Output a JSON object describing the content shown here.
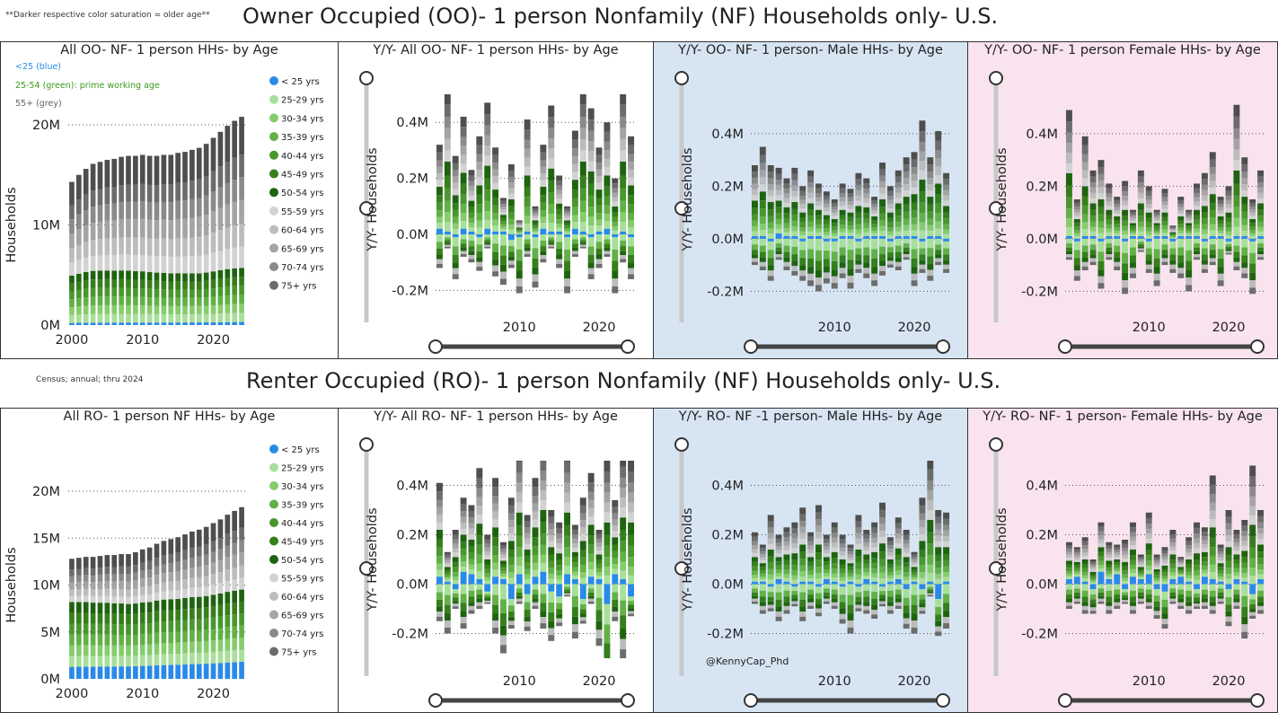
{
  "header": {
    "note_saturation": "**Darker respective color saturation = older age**",
    "title_oo": "Owner Occupied (OO)- 1 person Nonfamily (NF) Households only- U.S.",
    "note_source": "Census; annual; thru 2024",
    "title_ro": "Renter Occupied (RO)- 1 person Nonfamily (NF) Households only- U.S.",
    "credit": "@KennyCap_Phd"
  },
  "age_notes": {
    "blue": "<25 (blue)",
    "green": "25-54 (green): prime working age",
    "grey": "55+ (grey)"
  },
  "colors": {
    "blue": "#2a8ae8",
    "green_shades": [
      "#a8e09a",
      "#86cc6e",
      "#62b148",
      "#4a9730",
      "#357f1c",
      "#1f6310"
    ],
    "grey_shades": [
      "#d2d2d2",
      "#bcbcbc",
      "#a4a4a4",
      "#8a8a8a",
      "#6c6c6c",
      "#4e4e4e"
    ],
    "bg_male": "#d7e5f3",
    "bg_female": "#f8e3ee"
  },
  "legend": [
    "< 25 yrs",
    "25-29 yrs",
    "30-34 yrs",
    "35-39 yrs",
    "40-44 yrs",
    "45-49 yrs",
    "50-54 yrs",
    "55-59 yrs",
    "60-64 yrs",
    "65-69 yrs",
    "70-74 yrs",
    "75+ yrs"
  ],
  "chart_data": [
    {
      "id": "oo-all-level",
      "type": "bar",
      "stacked": true,
      "title": "All OO- NF- 1 person HHs- by Age",
      "ylabel": "Households",
      "ylim": [
        0,
        20000000
      ],
      "yticks": [
        "0M",
        "10M",
        "20M"
      ],
      "xticks": [
        "2000",
        "2010",
        "2020"
      ],
      "x": [
        2000,
        2001,
        2002,
        2003,
        2004,
        2005,
        2006,
        2007,
        2008,
        2009,
        2010,
        2011,
        2012,
        2013,
        2014,
        2015,
        2016,
        2017,
        2018,
        2019,
        2020,
        2021,
        2022,
        2023,
        2024
      ],
      "totals": [
        14.3,
        15.0,
        15.6,
        16.1,
        16.3,
        16.5,
        16.6,
        16.8,
        16.9,
        16.9,
        17.0,
        16.9,
        16.9,
        17.0,
        17.0,
        17.2,
        17.3,
        17.5,
        17.7,
        18.1,
        18.7,
        19.3,
        19.9,
        20.4,
        20.8
      ],
      "under25_share": 0.015,
      "prime_share_first": 0.33,
      "prime_share_last": 0.26,
      "legend": true
    },
    {
      "id": "oo-all-yoy",
      "type": "bar",
      "stacked": true,
      "title": "Y/Y- All OO- NF- 1 person HHs- by Age",
      "ylabel": "Y/Y- Households",
      "ylim": [
        -0.25,
        0.5
      ],
      "yticks": [
        "0.4M",
        "0.2M",
        "0.0M",
        "-0.2M"
      ],
      "xticks": [
        "2010",
        "2020"
      ],
      "totals": [
        0.3,
        0.5,
        0.28,
        0.4,
        0.22,
        0.35,
        0.45,
        0.3,
        0.12,
        0.25,
        0.05,
        0.4,
        0.1,
        0.3,
        0.45,
        0.2,
        0.1,
        0.35,
        0.5,
        0.45,
        0.3,
        0.38,
        0.2,
        0.5,
        0.35
      ],
      "neg": [
        -0.12,
        -0.05,
        -0.15,
        -0.08,
        -0.1,
        -0.12,
        -0.05,
        -0.15,
        -0.18,
        -0.1,
        -0.2,
        -0.08,
        -0.18,
        -0.1,
        -0.05,
        -0.12,
        -0.2,
        -0.08,
        -0.05,
        -0.15,
        -0.12,
        -0.08,
        -0.2,
        -0.1,
        -0.15
      ],
      "blue": [
        0.02,
        0.01,
        -0.01,
        0.02,
        0.01,
        -0.01,
        0.02,
        0.01,
        0.01,
        -0.02,
        -0.01,
        0.01,
        -0.01,
        0.02,
        0.01,
        0.01,
        -0.01,
        0.02,
        0.01,
        -0.01,
        0.01,
        0.02,
        -0.01,
        0.01,
        -0.01
      ]
    },
    {
      "id": "oo-male-yoy",
      "type": "bar",
      "stacked": true,
      "title": "Y/Y- OO- NF- 1 person- Male HHs- by Age",
      "ylabel": "Y/Y- Households",
      "ylim": [
        -0.25,
        0.55
      ],
      "yticks": [
        "0.4M",
        "0.2M",
        "0.0M",
        "-0.2M"
      ],
      "xticks": [
        "2010",
        "2020"
      ],
      "totals": [
        0.27,
        0.34,
        0.28,
        0.25,
        0.22,
        0.26,
        0.2,
        0.25,
        0.2,
        0.18,
        0.15,
        0.2,
        0.18,
        0.25,
        0.22,
        0.15,
        0.28,
        0.2,
        0.25,
        0.3,
        0.32,
        0.45,
        0.3,
        0.4,
        0.25
      ],
      "neg": [
        -0.1,
        -0.12,
        -0.15,
        -0.08,
        -0.12,
        -0.14,
        -0.15,
        -0.18,
        -0.2,
        -0.16,
        -0.18,
        -0.15,
        -0.19,
        -0.12,
        -0.15,
        -0.18,
        -0.14,
        -0.1,
        -0.12,
        -0.08,
        -0.18,
        -0.12,
        -0.16,
        -0.1,
        -0.12
      ],
      "blue": [
        0.01,
        0.01,
        -0.01,
        0.02,
        0.01,
        0.01,
        -0.01,
        0.01,
        0.01,
        -0.01,
        -0.01,
        0.01,
        0.01,
        -0.01,
        0.01,
        0.01,
        0.01,
        -0.01,
        0.01,
        0.01,
        0.01,
        -0.01,
        0.01,
        0.01,
        -0.01
      ]
    },
    {
      "id": "oo-female-yoy",
      "type": "bar",
      "stacked": true,
      "title": "Y/Y- OO- NF- 1 person Female HHs- by Age",
      "ylabel": "Y/Y- Households",
      "ylim": [
        -0.25,
        0.55
      ],
      "yticks": [
        "0.4M",
        "0.2M",
        "0.0M",
        "-0.2M"
      ],
      "xticks": [
        "2010",
        "2020"
      ],
      "totals": [
        0.48,
        0.15,
        0.38,
        0.25,
        0.3,
        0.2,
        0.15,
        0.22,
        0.1,
        0.25,
        0.2,
        0.1,
        0.18,
        0.05,
        0.15,
        0.1,
        0.2,
        0.25,
        0.32,
        0.15,
        0.2,
        0.5,
        0.3,
        0.15,
        0.25
      ],
      "neg": [
        -0.08,
        -0.15,
        -0.12,
        -0.1,
        -0.18,
        -0.08,
        -0.12,
        -0.2,
        -0.15,
        -0.05,
        -0.12,
        -0.18,
        -0.1,
        -0.12,
        -0.15,
        -0.2,
        -0.08,
        -0.12,
        -0.1,
        -0.18,
        -0.05,
        -0.12,
        -0.15,
        -0.2,
        -0.08
      ],
      "blue": [
        0.01,
        -0.01,
        0.01,
        0.01,
        -0.01,
        0.01,
        0.01,
        -0.01,
        0.01,
        0.01,
        -0.01,
        0.01,
        0.01,
        -0.01,
        0.01,
        0.01,
        0.01,
        -0.01,
        0.01,
        0.01,
        -0.01,
        0.01,
        0.01,
        -0.01,
        0.01
      ]
    },
    {
      "id": "ro-all-level",
      "type": "bar",
      "stacked": true,
      "title": "All RO- 1 person NF HHs- by Age",
      "ylabel": "Households",
      "ylim": [
        0,
        20000000
      ],
      "yticks": [
        "0M",
        "5M",
        "10M",
        "15M",
        "20M"
      ],
      "xticks": [
        "2000",
        "2010",
        "2020"
      ],
      "x": [
        2000,
        2001,
        2002,
        2003,
        2004,
        2005,
        2006,
        2007,
        2008,
        2009,
        2010,
        2011,
        2012,
        2013,
        2014,
        2015,
        2016,
        2017,
        2018,
        2019,
        2020,
        2021,
        2022,
        2023,
        2024
      ],
      "totals": [
        12.8,
        12.9,
        13.0,
        13.0,
        13.1,
        13.2,
        13.2,
        13.3,
        13.3,
        13.5,
        13.8,
        14.0,
        14.4,
        14.7,
        14.9,
        15.1,
        15.4,
        15.7,
        15.9,
        16.2,
        16.6,
        17.0,
        17.5,
        17.9,
        18.3
      ],
      "under25_share": 0.1,
      "prime_share_first": 0.54,
      "prime_share_last": 0.42,
      "legend": true
    },
    {
      "id": "ro-all-yoy",
      "type": "bar",
      "stacked": true,
      "title": "Y/Y- All RO- NF- 1 person HHs- by Age",
      "ylabel": "Y/Y- Households",
      "ylim": [
        -0.3,
        0.5
      ],
      "yticks": [
        "0.4M",
        "0.2M",
        "0.0M",
        "-0.2M"
      ],
      "xticks": [
        "2010",
        "2020"
      ],
      "totals": [
        0.38,
        0.12,
        0.22,
        0.3,
        0.28,
        0.45,
        0.2,
        0.4,
        0.15,
        0.35,
        0.5,
        0.28,
        0.4,
        0.5,
        0.3,
        0.25,
        0.5,
        0.22,
        0.35,
        0.42,
        0.2,
        0.5,
        0.3,
        0.5,
        0.5
      ],
      "neg": [
        -0.15,
        -0.2,
        -0.08,
        -0.18,
        -0.12,
        -0.1,
        -0.05,
        -0.2,
        -0.28,
        -0.12,
        -0.08,
        -0.15,
        -0.1,
        -0.18,
        -0.2,
        -0.12,
        -0.05,
        -0.22,
        -0.1,
        -0.08,
        -0.25,
        -0.38,
        -0.15,
        -0.3,
        -0.08
      ],
      "blue": [
        0.03,
        0.01,
        -0.02,
        0.05,
        0.04,
        0.02,
        -0.03,
        0.03,
        0.02,
        -0.06,
        0.04,
        -0.04,
        0.03,
        0.05,
        -0.03,
        -0.05,
        0.04,
        0.02,
        -0.06,
        0.03,
        0.02,
        -0.08,
        0.04,
        0.02,
        -0.05
      ]
    },
    {
      "id": "ro-male-yoy",
      "type": "bar",
      "stacked": true,
      "title": "Y/Y- RO- NF -1 person- Male HHs- by Age",
      "ylabel": "Y/Y- Households",
      "ylim": [
        -0.3,
        0.5
      ],
      "yticks": [
        "0.4M",
        "0.2M",
        "0.0M",
        "-0.2M"
      ],
      "xticks": [
        "2010",
        "2020"
      ],
      "totals": [
        0.2,
        0.15,
        0.28,
        0.18,
        0.22,
        0.25,
        0.3,
        0.2,
        0.32,
        0.18,
        0.24,
        0.2,
        0.15,
        0.28,
        0.2,
        0.24,
        0.33,
        0.18,
        0.25,
        0.22,
        0.12,
        0.35,
        0.5,
        0.3,
        0.28
      ],
      "neg": [
        -0.08,
        -0.12,
        -0.1,
        -0.15,
        -0.12,
        -0.08,
        -0.15,
        -0.1,
        -0.12,
        -0.08,
        -0.1,
        -0.15,
        -0.2,
        -0.1,
        -0.12,
        -0.14,
        -0.08,
        -0.12,
        -0.1,
        -0.16,
        -0.2,
        -0.1,
        -0.05,
        -0.15,
        -0.18
      ],
      "blue": [
        0.01,
        0.01,
        -0.01,
        0.02,
        0.01,
        -0.01,
        0.01,
        0.01,
        -0.01,
        0.02,
        0.01,
        -0.01,
        0.01,
        -0.01,
        0.02,
        0.01,
        -0.01,
        0.01,
        0.02,
        -0.02,
        0.01,
        -0.02,
        0.01,
        -0.06,
        0.01
      ]
    },
    {
      "id": "ro-female-yoy",
      "type": "bar",
      "stacked": true,
      "title": "Y/Y- RO- NF- 1 person- Female HHs- by Age",
      "ylabel": "Y/Y- Households",
      "ylim": [
        -0.3,
        0.5
      ],
      "yticks": [
        "0.4M",
        "0.2M",
        "0.0M",
        "-0.2M"
      ],
      "xticks": [
        "2010",
        "2020"
      ],
      "totals": [
        0.15,
        0.12,
        0.18,
        0.1,
        0.2,
        0.15,
        0.12,
        0.18,
        0.22,
        0.1,
        0.25,
        0.12,
        0.15,
        0.2,
        0.08,
        0.18,
        0.25,
        0.2,
        0.42,
        0.15,
        0.3,
        0.2,
        0.25,
        0.48,
        0.28
      ],
      "neg": [
        -0.1,
        -0.08,
        -0.12,
        -0.1,
        -0.08,
        -0.12,
        -0.1,
        -0.06,
        -0.12,
        -0.08,
        -0.1,
        -0.12,
        -0.15,
        -0.08,
        -0.1,
        -0.12,
        -0.08,
        -0.1,
        -0.12,
        -0.08,
        -0.15,
        -0.1,
        -0.22,
        -0.1,
        -0.12
      ],
      "blue": [
        0.02,
        0.03,
        0.01,
        -0.02,
        0.05,
        0.02,
        0.04,
        -0.02,
        0.03,
        0.02,
        0.04,
        -0.02,
        -0.03,
        0.02,
        0.03,
        0.01,
        -0.02,
        0.03,
        0.02,
        0.01,
        -0.02,
        0.02,
        0.01,
        -0.04,
        0.02
      ]
    }
  ]
}
